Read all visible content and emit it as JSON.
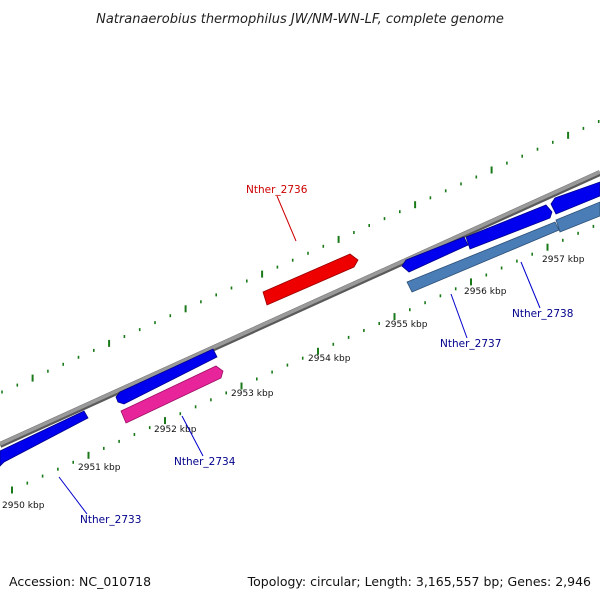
{
  "title": "Natranaerobius thermophilus JW/NM-WN-LF, complete genome",
  "footer": {
    "accession": "Accession: NC_010718",
    "stats": "Topology: circular; Length: 3,165,557 bp; Genes: 2,946"
  },
  "scale": {
    "ticks": [
      "2950 kbp",
      "2951 kbp",
      "2952 kbp",
      "2953 kbp",
      "2954 kbp",
      "2955 kbp",
      "2956 kbp",
      "2957 kbp"
    ]
  },
  "genes": [
    {
      "name": "Nther_2733",
      "color": "#0000ee",
      "track": "upper"
    },
    {
      "name": "Nther_2734",
      "color": "#e8249b",
      "track": "lower"
    },
    {
      "name": "Nther_2736",
      "color": "#ee0000",
      "track": "upper"
    },
    {
      "name": "Nther_2737",
      "color": "#4a7db5",
      "track": "lower"
    },
    {
      "name": "Nther_2738",
      "color": "#4a7db5",
      "track": "lower"
    }
  ],
  "unlabeled_genes": [
    {
      "color": "#0000ee",
      "track": "upper"
    },
    {
      "color": "#0000ee",
      "track": "upper"
    },
    {
      "color": "#0000ee",
      "track": "upper"
    },
    {
      "color": "#0000ee",
      "track": "upper"
    }
  ],
  "colors": {
    "backbone": "#808080",
    "tick": "#1a7a1a",
    "label_blue": "#00008b",
    "label_red": "#cc0000",
    "forward": "#0000ee",
    "reverse_pink": "#e8249b",
    "reverse_steel": "#4a7db5",
    "highlight": "#ee0000"
  }
}
